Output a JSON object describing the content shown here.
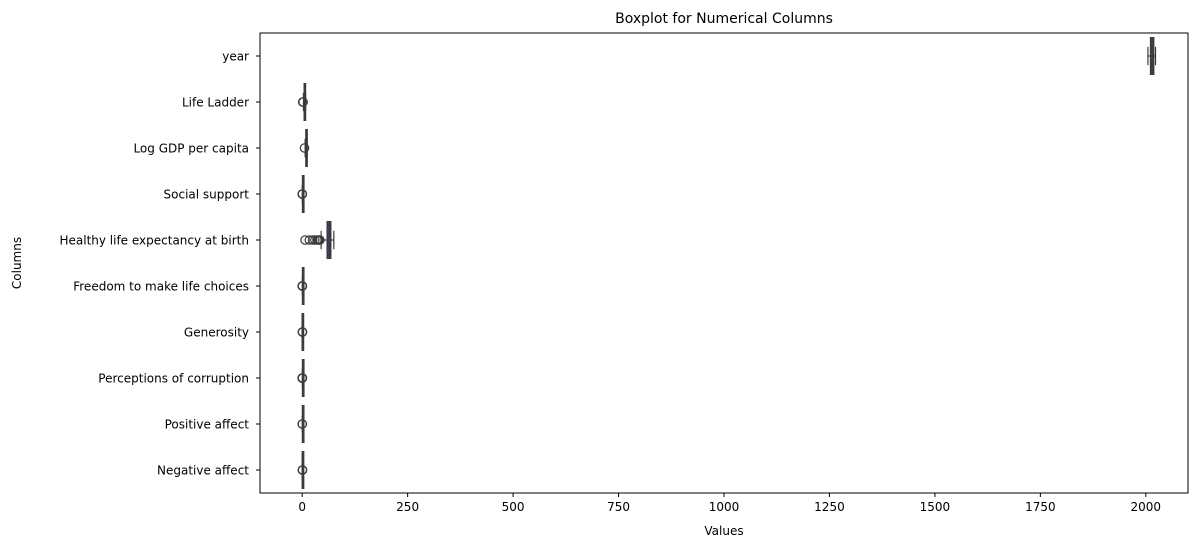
{
  "chart_data": {
    "type": "boxplot",
    "orientation": "horizontal",
    "title": "Boxplot for Numerical Columns",
    "xlabel": "Values",
    "ylabel": "Columns",
    "xlim": [
      -100,
      2100
    ],
    "xticks": [
      0,
      250,
      500,
      750,
      1000,
      1250,
      1500,
      1750,
      2000
    ],
    "grid": false,
    "box_color": "#4c3a60",
    "edge_color": "#3b3b3b",
    "categories": [
      "year",
      "Life Ladder",
      "Log GDP per capita",
      "Social support",
      "Healthy life expectancy at birth",
      "Freedom to make life choices",
      "Generosity",
      "Perceptions of corruption",
      "Positive affect",
      "Negative affect"
    ],
    "series": [
      {
        "whisker_low": 2005,
        "q1": 2011,
        "median": 2015,
        "q3": 2019,
        "whisker_high": 2023,
        "outliers": []
      },
      {
        "whisker_low": 3.0,
        "q1": 4.6,
        "median": 5.4,
        "q3": 6.2,
        "whisker_high": 8.0,
        "outliers": [
          1.3,
          1.7,
          2.2
        ]
      },
      {
        "whisker_low": 7.0,
        "q1": 8.5,
        "median": 9.5,
        "q3": 10.4,
        "whisker_high": 11.7,
        "outliers": [
          5.5
        ]
      },
      {
        "whisker_low": 0.3,
        "q1": 0.75,
        "median": 0.83,
        "q3": 0.9,
        "whisker_high": 0.99,
        "outliers": [
          0.23,
          0.26,
          0.29
        ]
      },
      {
        "whisker_low": 45.0,
        "q1": 59.0,
        "median": 65.0,
        "q3": 68.0,
        "whisker_high": 75.0,
        "outliers": [
          6.7,
          17.0,
          25.0,
          30.0,
          35.0,
          38.0,
          40.0,
          42.0
        ]
      },
      {
        "whisker_low": 0.4,
        "q1": 0.66,
        "median": 0.77,
        "q3": 0.86,
        "whisker_high": 0.99,
        "outliers": [
          0.23,
          0.26,
          0.3,
          0.33
        ]
      },
      {
        "whisker_low": -0.34,
        "q1": -0.11,
        "median": -0.02,
        "q3": 0.09,
        "whisker_high": 0.4,
        "outliers": [
          0.5,
          0.6,
          0.7
        ]
      },
      {
        "whisker_low": 0.45,
        "q1": 0.69,
        "median": 0.8,
        "q3": 0.86,
        "whisker_high": 0.98,
        "outliers": [
          0.04,
          0.1,
          0.2,
          0.3,
          0.35,
          0.4
        ]
      },
      {
        "whisker_low": 0.3,
        "q1": 0.57,
        "median": 0.66,
        "q3": 0.74,
        "whisker_high": 0.88,
        "outliers": [
          0.18,
          0.22
        ]
      },
      {
        "whisker_low": 0.08,
        "q1": 0.21,
        "median": 0.26,
        "q3": 0.33,
        "whisker_high": 0.5,
        "outliers": [
          0.55,
          0.6,
          0.7
        ]
      }
    ]
  }
}
